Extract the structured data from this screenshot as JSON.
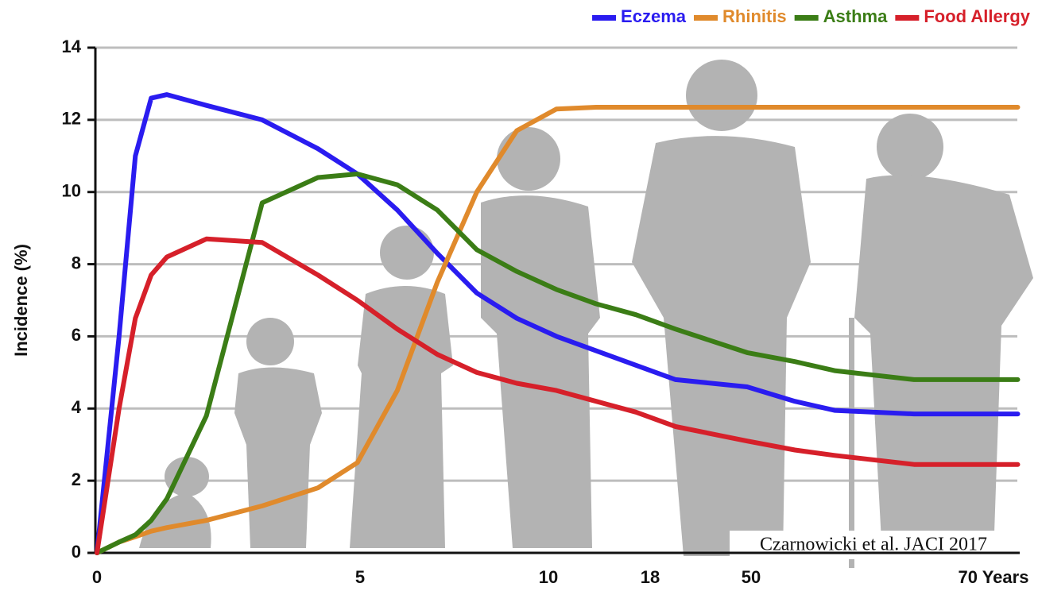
{
  "chart_data": {
    "type": "line",
    "y_label": "Incidence (%)",
    "annotation": "Czarnowicki et al.  JACI 2017",
    "x": [
      0,
      0.42,
      0.73,
      1.03,
      1.33,
      2.08,
      3.14,
      4.2,
      4.95,
      5.99,
      7.05,
      8.1,
      9.16,
      10.63,
      13.75,
      16.88,
      26.06,
      48.74,
      53.61,
      56.89,
      63.44,
      72
    ],
    "series": [
      {
        "name": "Eczema",
        "color": "#2a1cf0",
        "values": [
          0,
          6,
          11,
          12.6,
          12.7,
          12.4,
          12.0,
          11.2,
          10.5,
          9.5,
          8.3,
          7.2,
          6.5,
          6.0,
          5.6,
          5.2,
          4.8,
          4.6,
          4.2,
          3.95,
          3.85,
          3.85
        ]
      },
      {
        "name": "Rhinitis",
        "color": "#e08a2c",
        "values": [
          0,
          0.3,
          0.45,
          0.6,
          0.7,
          0.9,
          1.3,
          1.8,
          2.5,
          4.5,
          7.5,
          10,
          11.7,
          12.3,
          12.35,
          12.35,
          12.35,
          12.35,
          12.35,
          12.35,
          12.35,
          12.35
        ]
      },
      {
        "name": "Asthma",
        "color": "#3b7d16",
        "values": [
          0,
          0.3,
          0.5,
          0.9,
          1.5,
          3.8,
          9.7,
          10.4,
          10.5,
          10.2,
          9.5,
          8.4,
          7.8,
          7.3,
          6.9,
          6.6,
          6.2,
          5.55,
          5.3,
          5.05,
          4.8,
          4.8
        ]
      },
      {
        "name": "Food Allergy",
        "color": "#d6202a",
        "values": [
          0,
          4,
          6.5,
          7.7,
          8.2,
          8.7,
          8.6,
          7.7,
          7.0,
          6.2,
          5.5,
          5.0,
          4.7,
          4.5,
          4.2,
          3.9,
          3.5,
          3.1,
          2.85,
          2.7,
          2.45,
          2.45
        ]
      }
    ],
    "xlim": [
      0,
      72
    ],
    "xticks": [
      0,
      5,
      10,
      18,
      50,
      {
        "value": 70,
        "label": "70 Years"
      }
    ],
    "ylim": [
      0,
      14
    ],
    "yticks": [
      0,
      2,
      4,
      6,
      8,
      10,
      12,
      14
    ],
    "grid": true
  }
}
